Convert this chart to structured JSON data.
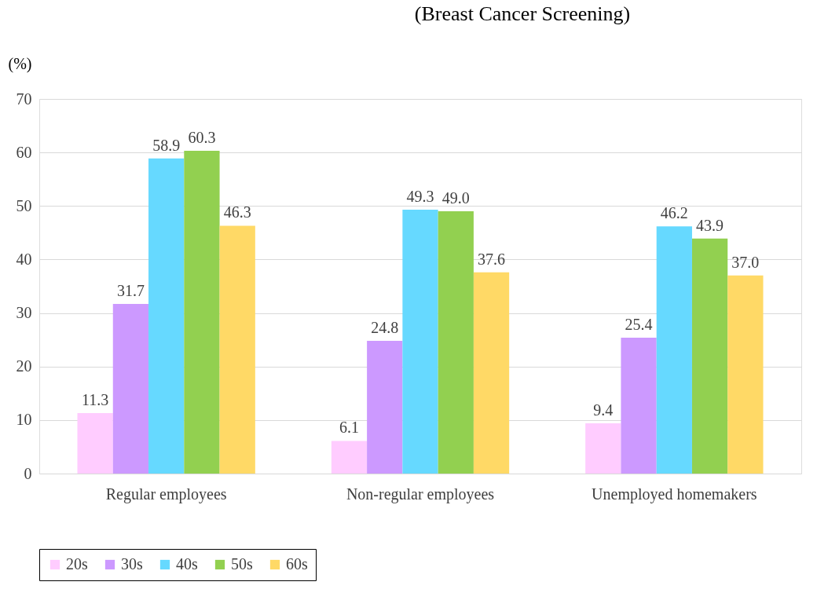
{
  "chart_data": {
    "type": "bar",
    "title": "(Breast Cancer Screening)",
    "ylabel": "(%)",
    "categories": [
      "Regular employees",
      "Non-regular employees",
      "Unemployed homemakers"
    ],
    "series": [
      {
        "name": "20s",
        "color": "#ffccff",
        "values": [
          11.3,
          6.1,
          9.4
        ],
        "value_labels": [
          "11.3",
          "6.1",
          "9.4"
        ]
      },
      {
        "name": "30s",
        "color": "#cc99ff",
        "values": [
          31.7,
          24.8,
          25.4
        ],
        "value_labels": [
          "31.7",
          "24.8",
          "25.4"
        ]
      },
      {
        "name": "40s",
        "color": "#66d9ff",
        "values": [
          58.9,
          49.3,
          46.2
        ],
        "value_labels": [
          "58.9",
          "49.3",
          "46.2"
        ]
      },
      {
        "name": "50s",
        "color": "#92d050",
        "values": [
          60.3,
          49.0,
          43.9
        ],
        "value_labels": [
          "60.3",
          "49.0",
          "43.9"
        ]
      },
      {
        "name": "60s",
        "color": "#ffd966",
        "values": [
          46.3,
          37.6,
          37.0
        ],
        "value_labels": [
          "46.3",
          "37.6",
          "37.0"
        ]
      }
    ],
    "ylim": [
      0,
      70
    ],
    "yticks": [
      0,
      10,
      20,
      30,
      40,
      50,
      60,
      70
    ],
    "grid": "y",
    "legend": "bottom"
  }
}
